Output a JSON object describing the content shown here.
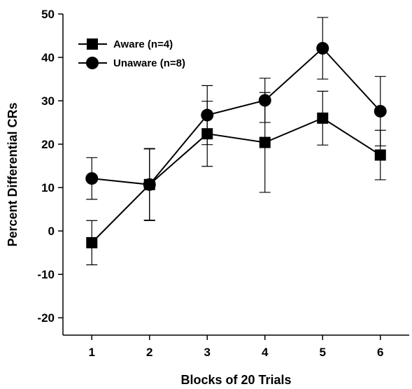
{
  "chart_data": {
    "type": "line",
    "title": "",
    "xlabel": "Blocks of 20 Trials",
    "ylabel": "Percent Differential CRs",
    "x": [
      1,
      2,
      3,
      4,
      5,
      6
    ],
    "xticks": [
      "1",
      "2",
      "3",
      "4",
      "5",
      "6"
    ],
    "xlim": [
      0.5,
      6.5
    ],
    "ylim": [
      -24,
      50
    ],
    "yticks": [
      "-20",
      "-10",
      "0",
      "10",
      "20",
      "30",
      "40",
      "50"
    ],
    "grid": false,
    "legend_position": "top-left",
    "series": [
      {
        "name": "Aware (n=4)",
        "marker": "square",
        "values": [
          -2.7,
          10.7,
          22.4,
          20.4,
          26.0,
          17.5
        ],
        "errors": [
          5.1,
          8.3,
          7.5,
          11.5,
          6.2,
          5.7
        ]
      },
      {
        "name": "Unaware (n=8)",
        "marker": "circle",
        "values": [
          12.1,
          10.7,
          26.7,
          30.1,
          42.1,
          27.6
        ],
        "errors": [
          4.8,
          8.2,
          6.8,
          5.1,
          7.1,
          8.0
        ]
      }
    ]
  },
  "colors": {
    "line": "#000000",
    "marker": "#000000"
  }
}
